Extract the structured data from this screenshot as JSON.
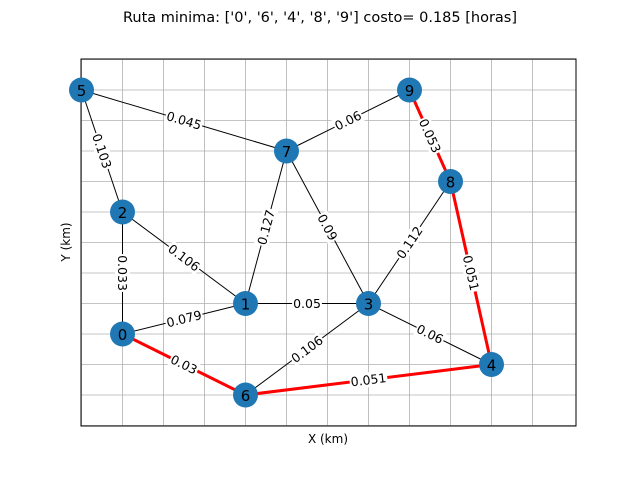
{
  "chart_data": {
    "type": "graph",
    "title": "Ruta minima: ['0', '6', '4', '8', '9'] costo= 0.185 [horas]",
    "xlabel": "X (km)",
    "ylabel": "Y (km)",
    "xlim": [
      0,
      12
    ],
    "ylim": [
      0,
      12
    ],
    "grid": true,
    "colors": {
      "node": "#1f77b4",
      "edge": "#000000",
      "path": "#ff0000",
      "grid": "#b0b0b0"
    },
    "nodes": [
      {
        "id": "0",
        "x": 2,
        "y": 3
      },
      {
        "id": "1",
        "x": 5,
        "y": 4
      },
      {
        "id": "2",
        "x": 2,
        "y": 7
      },
      {
        "id": "3",
        "x": 8,
        "y": 4
      },
      {
        "id": "4",
        "x": 11,
        "y": 2
      },
      {
        "id": "5",
        "x": 1,
        "y": 11
      },
      {
        "id": "6",
        "x": 5,
        "y": 1
      },
      {
        "id": "7",
        "x": 6,
        "y": 9
      },
      {
        "id": "8",
        "x": 10,
        "y": 8
      },
      {
        "id": "9",
        "x": 9,
        "y": 11
      }
    ],
    "edges": [
      {
        "from": "5",
        "to": "7",
        "weight": "0.045",
        "path": false
      },
      {
        "from": "9",
        "to": "7",
        "weight": "0.06",
        "path": false
      },
      {
        "from": "5",
        "to": "2",
        "weight": "0.103",
        "path": false
      },
      {
        "from": "2",
        "to": "1",
        "weight": "0.106",
        "path": false
      },
      {
        "from": "7",
        "to": "1",
        "weight": "0.127",
        "path": false
      },
      {
        "from": "7",
        "to": "3",
        "weight": "0.09",
        "path": false
      },
      {
        "from": "8",
        "to": "3",
        "weight": "0.112",
        "path": false
      },
      {
        "from": "2",
        "to": "0",
        "weight": "0.033",
        "path": false
      },
      {
        "from": "0",
        "to": "1",
        "weight": "0.079",
        "path": false
      },
      {
        "from": "1",
        "to": "3",
        "weight": "0.05",
        "path": false
      },
      {
        "from": "3",
        "to": "4",
        "weight": "0.06",
        "path": false
      },
      {
        "from": "6",
        "to": "3",
        "weight": "0.106",
        "path": false
      },
      {
        "from": "0",
        "to": "6",
        "weight": "0.03",
        "path": true
      },
      {
        "from": "6",
        "to": "4",
        "weight": "0.051",
        "path": true
      },
      {
        "from": "4",
        "to": "8",
        "weight": "0.051",
        "path": true
      },
      {
        "from": "8",
        "to": "9",
        "weight": "0.053",
        "path": true
      }
    ]
  }
}
